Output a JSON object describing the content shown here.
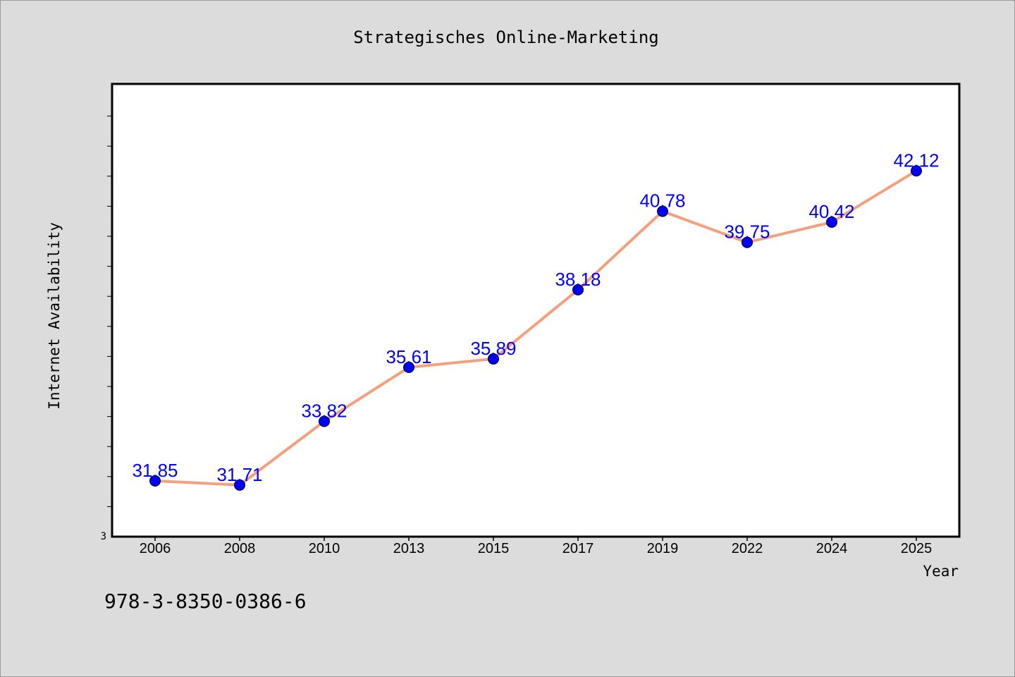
{
  "chart_data": {
    "type": "line",
    "title": "Strategisches Online-Marketing",
    "xlabel": "Year",
    "ylabel": "Internet Availability",
    "categories": [
      "2006",
      "2008",
      "2010",
      "2013",
      "2015",
      "2017",
      "2019",
      "2022",
      "2024",
      "2025"
    ],
    "series": [
      {
        "values": [
          31.85,
          31.71,
          33.82,
          35.61,
          35.89,
          38.18,
          40.78,
          39.75,
          40.42,
          42.12
        ],
        "data_labels": [
          "31.85",
          "31.71",
          "33.82",
          "35.61",
          "35.89",
          "38.18",
          "40.78",
          "39.75",
          "40.42",
          "42.12"
        ],
        "line_color": "#f4a07e",
        "marker_color": "#0000ff",
        "label_color": "#0000ff"
      }
    ],
    "y_tick_label": "3",
    "ylim": [
      30,
      45
    ],
    "grid": false
  },
  "footer_text": "978-3-8350-0386-6",
  "colors": {
    "background": "#dcdcdc",
    "plot_background": "#ffffff",
    "axis": "#000000"
  }
}
